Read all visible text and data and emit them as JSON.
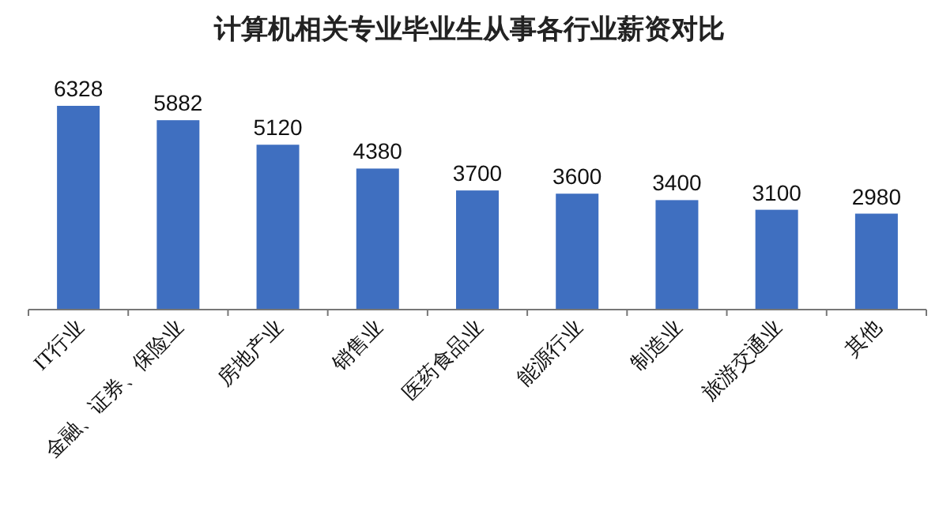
{
  "chart_data": {
    "type": "bar",
    "title": "计算机相关专业毕业生从事各行业薪资对比",
    "categories": [
      "IT行业",
      "金融、证券、保险业",
      "房地产业",
      "销售业",
      "医药食品业",
      "能源行业",
      "制造业",
      "旅游交通业",
      "其他"
    ],
    "values": [
      6328,
      5882,
      5120,
      4380,
      3700,
      3600,
      3400,
      3100,
      2980
    ],
    "color": "#3f6fc0",
    "data_labels": true
  }
}
